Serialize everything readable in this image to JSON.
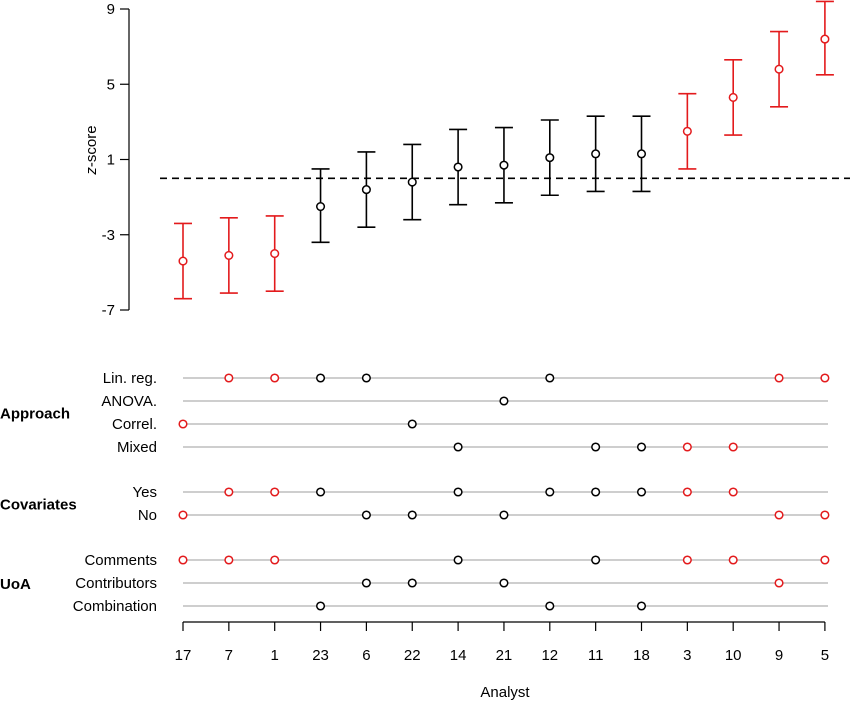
{
  "chart_data": [
    {
      "type": "errorbar",
      "ylabel_italic": "z",
      "ylabel_rest": "-score",
      "ylim": [
        -7,
        9
      ],
      "yticks": [
        -7,
        -3,
        1,
        5,
        9
      ],
      "reference_line": 0,
      "colors": {
        "significant": "#e31a1c",
        "non_significant": "#000000"
      },
      "analysts": [
        "17",
        "7",
        "1",
        "23",
        "6",
        "22",
        "14",
        "21",
        "12",
        "11",
        "18",
        "3",
        "10",
        "9",
        "5"
      ],
      "estimates": [
        -4.4,
        -4.1,
        -4.0,
        -1.5,
        -0.6,
        -0.2,
        0.6,
        0.7,
        1.1,
        1.3,
        1.3,
        2.5,
        4.3,
        5.8,
        7.4
      ],
      "lower": [
        -6.4,
        -6.1,
        -6.0,
        -3.4,
        -2.6,
        -2.2,
        -1.4,
        -1.3,
        -0.9,
        -0.7,
        -0.7,
        0.5,
        2.3,
        3.8,
        5.5
      ],
      "upper": [
        -2.4,
        -2.1,
        -2.0,
        0.5,
        1.4,
        1.8,
        2.6,
        2.7,
        3.1,
        3.3,
        3.3,
        4.5,
        6.3,
        7.8,
        9.4
      ],
      "significant": [
        true,
        true,
        true,
        false,
        false,
        false,
        false,
        false,
        false,
        false,
        false,
        true,
        true,
        true,
        true
      ]
    },
    {
      "type": "dot-matrix",
      "xlabel": "Analyst",
      "groups": [
        {
          "name": "Approach",
          "rows": [
            {
              "label": "Lin. reg.",
              "analysts": [
                "7",
                "1",
                "23",
                "6",
                "12",
                "9",
                "5"
              ]
            },
            {
              "label": "ANOVA.",
              "analysts": [
                "21"
              ]
            },
            {
              "label": "Correl.",
              "analysts": [
                "17",
                "22"
              ]
            },
            {
              "label": "Mixed",
              "analysts": [
                "14",
                "11",
                "18",
                "3",
                "10"
              ]
            }
          ]
        },
        {
          "name": "Covariates",
          "rows": [
            {
              "label": "Yes",
              "analysts": [
                "7",
                "1",
                "23",
                "14",
                "12",
                "11",
                "18",
                "3",
                "10"
              ]
            },
            {
              "label": "No",
              "analysts": [
                "17",
                "6",
                "22",
                "21",
                "9",
                "5"
              ]
            }
          ]
        },
        {
          "name": "UoA",
          "rows": [
            {
              "label": "Comments",
              "analysts": [
                "17",
                "7",
                "1",
                "14",
                "11",
                "3",
                "10",
                "5"
              ]
            },
            {
              "label": "Contributors",
              "analysts": [
                "6",
                "22",
                "21",
                "9"
              ]
            },
            {
              "label": "Combination",
              "analysts": [
                "23",
                "12",
                "18"
              ]
            }
          ]
        }
      ]
    }
  ]
}
